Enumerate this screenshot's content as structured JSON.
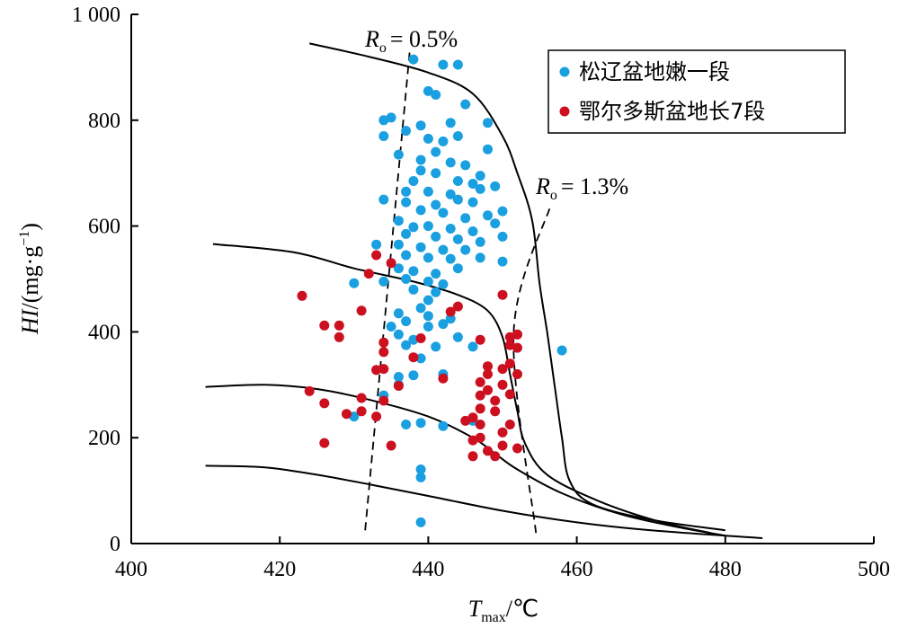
{
  "chart_data": {
    "type": "scatter",
    "xlabel": "T",
    "xlabel_sub": "max",
    "xlabel_unit": "/℃",
    "ylabel": "HI",
    "ylabel_unit": "/(mg·g",
    "ylabel_sup": "−1",
    "ylabel_close": ")",
    "xlim": [
      400,
      500
    ],
    "ylim": [
      0,
      1000
    ],
    "xticks": [
      "400",
      "420",
      "440",
      "460",
      "480",
      "500"
    ],
    "yticks": [
      "0",
      "200",
      "400",
      "600",
      "800",
      "1 000"
    ],
    "legend_position": "top-right",
    "series": [
      {
        "name": "松辽盆地嫩一段",
        "color": "#1a9fe0",
        "points": [
          [
            438,
            915
          ],
          [
            442,
            905
          ],
          [
            444,
            905
          ],
          [
            440,
            855
          ],
          [
            445,
            830
          ],
          [
            441,
            848
          ],
          [
            434,
            800
          ],
          [
            435,
            805
          ],
          [
            448,
            795
          ],
          [
            437,
            780
          ],
          [
            439,
            790
          ],
          [
            443,
            795
          ],
          [
            434,
            770
          ],
          [
            440,
            765
          ],
          [
            442,
            760
          ],
          [
            444,
            770
          ],
          [
            448,
            745
          ],
          [
            436,
            735
          ],
          [
            441,
            740
          ],
          [
            439,
            725
          ],
          [
            443,
            720
          ],
          [
            445,
            715
          ],
          [
            447,
            695
          ],
          [
            439,
            705
          ],
          [
            441,
            700
          ],
          [
            438,
            685
          ],
          [
            444,
            685
          ],
          [
            446,
            680
          ],
          [
            437,
            665
          ],
          [
            440,
            665
          ],
          [
            443,
            660
          ],
          [
            447,
            670
          ],
          [
            449,
            675
          ],
          [
            434,
            650
          ],
          [
            437,
            645
          ],
          [
            441,
            640
          ],
          [
            444,
            650
          ],
          [
            446,
            645
          ],
          [
            439,
            630
          ],
          [
            442,
            625
          ],
          [
            445,
            615
          ],
          [
            448,
            620
          ],
          [
            450,
            628
          ],
          [
            436,
            610
          ],
          [
            438,
            598
          ],
          [
            440,
            600
          ],
          [
            443,
            595
          ],
          [
            446,
            590
          ],
          [
            449,
            605
          ],
          [
            437,
            585
          ],
          [
            441,
            580
          ],
          [
            444,
            575
          ],
          [
            447,
            570
          ],
          [
            450,
            580
          ],
          [
            433,
            565
          ],
          [
            436,
            565
          ],
          [
            439,
            560
          ],
          [
            442,
            555
          ],
          [
            445,
            555
          ],
          [
            437,
            545
          ],
          [
            440,
            540
          ],
          [
            443,
            538
          ],
          [
            447,
            540
          ],
          [
            450,
            533
          ],
          [
            436,
            520
          ],
          [
            438,
            515
          ],
          [
            441,
            510
          ],
          [
            444,
            520
          ],
          [
            434,
            495
          ],
          [
            437,
            500
          ],
          [
            440,
            495
          ],
          [
            442,
            490
          ],
          [
            438,
            480
          ],
          [
            441,
            475
          ],
          [
            430,
            492
          ],
          [
            440,
            460
          ],
          [
            439,
            445
          ],
          [
            436,
            435
          ],
          [
            440,
            430
          ],
          [
            443,
            425
          ],
          [
            435,
            410
          ],
          [
            437,
            420
          ],
          [
            440,
            410
          ],
          [
            442,
            415
          ],
          [
            436,
            395
          ],
          [
            438,
            385
          ],
          [
            441,
            372
          ],
          [
            446,
            372
          ],
          [
            444,
            390
          ],
          [
            437,
            375
          ],
          [
            439,
            350
          ],
          [
            436,
            315
          ],
          [
            438,
            318
          ],
          [
            442,
            320
          ],
          [
            434,
            280
          ],
          [
            436,
            300
          ],
          [
            430,
            240
          ],
          [
            437,
            225
          ],
          [
            439,
            228
          ],
          [
            442,
            222
          ],
          [
            446,
            232
          ],
          [
            439,
            140
          ],
          [
            439,
            125
          ],
          [
            439,
            40
          ],
          [
            458,
            365
          ]
        ]
      },
      {
        "name": "鄂尔多斯盆地长7段",
        "color": "#cc1020",
        "points": [
          [
            423,
            468
          ],
          [
            426,
            412
          ],
          [
            428,
            412
          ],
          [
            428,
            390
          ],
          [
            431,
            440
          ],
          [
            432,
            510
          ],
          [
            433,
            545
          ],
          [
            435,
            530
          ],
          [
            431,
            275
          ],
          [
            429,
            245
          ],
          [
            431,
            250
          ],
          [
            433,
            240
          ],
          [
            433,
            328
          ],
          [
            434,
            330
          ],
          [
            434,
            380
          ],
          [
            434,
            362
          ],
          [
            434,
            270
          ],
          [
            435,
            185
          ],
          [
            436,
            298
          ],
          [
            438,
            352
          ],
          [
            439,
            388
          ],
          [
            442,
            312
          ],
          [
            443,
            438
          ],
          [
            444,
            448
          ],
          [
            426,
            190
          ],
          [
            424,
            288
          ],
          [
            426,
            265
          ],
          [
            445,
            232
          ],
          [
            446,
            238
          ],
          [
            446,
            195
          ],
          [
            446,
            165
          ],
          [
            447,
            385
          ],
          [
            447,
            305
          ],
          [
            447,
            280
          ],
          [
            447,
            255
          ],
          [
            447,
            225
          ],
          [
            447,
            200
          ],
          [
            448,
            175
          ],
          [
            448,
            335
          ],
          [
            448,
            320
          ],
          [
            448,
            290
          ],
          [
            449,
            270
          ],
          [
            449,
            250
          ],
          [
            449,
            165
          ],
          [
            450,
            330
          ],
          [
            450,
            300
          ],
          [
            450,
            210
          ],
          [
            450,
            185
          ],
          [
            451,
            390
          ],
          [
            451,
            375
          ],
          [
            451,
            340
          ],
          [
            451,
            282
          ],
          [
            451,
            225
          ],
          [
            452,
            395
          ],
          [
            452,
            370
          ],
          [
            452,
            320
          ],
          [
            450,
            470
          ],
          [
            452,
            180
          ]
        ]
      }
    ],
    "curves": [
      [
        [
          424,
          945
        ],
        [
          432,
          920
        ],
        [
          440,
          890
        ],
        [
          446,
          850
        ],
        [
          450,
          770
        ],
        [
          452,
          700
        ],
        [
          454,
          610
        ],
        [
          455,
          490
        ],
        [
          456,
          400
        ],
        [
          457,
          300
        ],
        [
          458,
          200
        ],
        [
          459,
          120
        ],
        [
          462,
          75
        ],
        [
          470,
          45
        ],
        [
          480,
          25
        ]
      ],
      [
        [
          411,
          566
        ],
        [
          422,
          550
        ],
        [
          430,
          520
        ],
        [
          438,
          495
        ],
        [
          444,
          470
        ],
        [
          448,
          440
        ],
        [
          450,
          390
        ],
        [
          451,
          320
        ],
        [
          452,
          250
        ],
        [
          453,
          190
        ],
        [
          456,
          130
        ],
        [
          463,
          80
        ],
        [
          471,
          42
        ],
        [
          478,
          20
        ]
      ],
      [
        [
          410,
          296
        ],
        [
          418,
          300
        ],
        [
          425,
          292
        ],
        [
          432,
          272
        ],
        [
          440,
          240
        ],
        [
          446,
          200
        ],
        [
          449,
          170
        ],
        [
          452,
          140
        ],
        [
          458,
          95
        ],
        [
          466,
          55
        ],
        [
          474,
          30
        ],
        [
          480,
          15
        ]
      ],
      [
        [
          410,
          147
        ],
        [
          418,
          144
        ],
        [
          425,
          130
        ],
        [
          432,
          112
        ],
        [
          440,
          90
        ],
        [
          450,
          62
        ],
        [
          460,
          40
        ],
        [
          470,
          25
        ],
        [
          485,
          10
        ]
      ]
    ],
    "ro_lines": [
      {
        "label_main": "R",
        "label_sub": "o",
        "label_value": "= 0.5%",
        "points": [
          [
            431.5,
            25
          ],
          [
            437.5,
            930
          ]
        ]
      },
      {
        "label_main": "R",
        "label_sub": "o",
        "label_value": "= 1.3%",
        "points": [
          [
            454.5,
            20
          ],
          [
            451.5,
            400
          ],
          [
            456.5,
            640
          ]
        ]
      }
    ]
  }
}
